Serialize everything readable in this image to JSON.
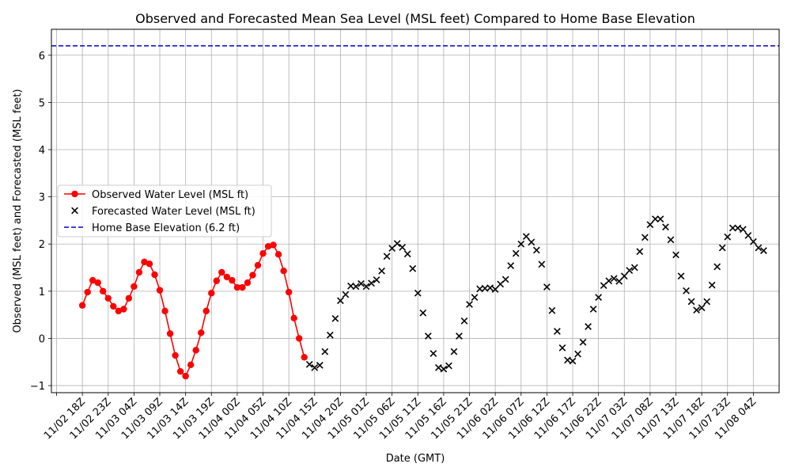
{
  "chart_data": {
    "type": "line",
    "title": "Observed and Forecasted Mean Sea Level (MSL feet) Compared to Home Base Elevation",
    "xlabel": "Date (GMT)",
    "ylabel": "Observed (MSL feet) and Forecasted (MSL feet)",
    "ylim": [
      -1.15,
      6.55
    ],
    "yticks": [
      -1,
      0,
      1,
      2,
      3,
      4,
      5,
      6
    ],
    "x_unit": "hours after 11/02 18Z",
    "xlim": [
      -6,
      135
    ],
    "xticks": [
      {
        "x": 0,
        "label": "11/02 18Z"
      },
      {
        "x": 5,
        "label": "11/02 23Z"
      },
      {
        "x": 10,
        "label": "11/03 04Z"
      },
      {
        "x": 15,
        "label": "11/03 09Z"
      },
      {
        "x": 20,
        "label": "11/03 14Z"
      },
      {
        "x": 25,
        "label": "11/03 19Z"
      },
      {
        "x": 30,
        "label": "11/04 00Z"
      },
      {
        "x": 35,
        "label": "11/04 05Z"
      },
      {
        "x": 40,
        "label": "11/04 10Z"
      },
      {
        "x": 45,
        "label": "11/04 15Z"
      },
      {
        "x": 50,
        "label": "11/04 20Z"
      },
      {
        "x": 55,
        "label": "11/05 01Z"
      },
      {
        "x": 60,
        "label": "11/05 06Z"
      },
      {
        "x": 65,
        "label": "11/05 11Z"
      },
      {
        "x": 70,
        "label": "11/05 16Z"
      },
      {
        "x": 75,
        "label": "11/05 21Z"
      },
      {
        "x": 80,
        "label": "11/06 02Z"
      },
      {
        "x": 85,
        "label": "11/06 07Z"
      },
      {
        "x": 90,
        "label": "11/06 12Z"
      },
      {
        "x": 95,
        "label": "11/06 17Z"
      },
      {
        "x": 100,
        "label": "11/06 22Z"
      },
      {
        "x": 105,
        "label": "11/07 03Z"
      },
      {
        "x": 110,
        "label": "11/07 08Z"
      },
      {
        "x": 115,
        "label": "11/07 13Z"
      },
      {
        "x": 120,
        "label": "11/07 18Z"
      },
      {
        "x": 125,
        "label": "11/07 23Z"
      },
      {
        "x": 130,
        "label": "11/08 04Z"
      }
    ],
    "grid": true,
    "legend_position": "center-left",
    "series": [
      {
        "name": "Observed Water Level (MSL ft)",
        "style": "line-marker",
        "color": "#ff0000",
        "points": [
          [
            0,
            0.7
          ],
          [
            1,
            0.98
          ],
          [
            2,
            1.23
          ],
          [
            3,
            1.18
          ],
          [
            4,
            1.0
          ],
          [
            5,
            0.85
          ],
          [
            6,
            0.68
          ],
          [
            7,
            0.58
          ],
          [
            8,
            0.62
          ],
          [
            9,
            0.85
          ],
          [
            10,
            1.1
          ],
          [
            11,
            1.4
          ],
          [
            12,
            1.62
          ],
          [
            13,
            1.58
          ],
          [
            14,
            1.35
          ],
          [
            15,
            1.02
          ],
          [
            16,
            0.58
          ],
          [
            17,
            0.1
          ],
          [
            18,
            -0.36
          ],
          [
            19,
            -0.7
          ],
          [
            20,
            -0.8
          ],
          [
            21,
            -0.56
          ],
          [
            22,
            -0.25
          ],
          [
            23,
            0.12
          ],
          [
            24,
            0.58
          ],
          [
            25,
            0.96
          ],
          [
            26,
            1.22
          ],
          [
            27,
            1.4
          ],
          [
            28,
            1.3
          ],
          [
            29,
            1.23
          ],
          [
            30,
            1.08
          ],
          [
            31,
            1.08
          ],
          [
            32,
            1.18
          ],
          [
            33,
            1.34
          ],
          [
            34,
            1.55
          ],
          [
            35,
            1.8
          ],
          [
            36,
            1.95
          ],
          [
            37,
            1.98
          ],
          [
            38,
            1.78
          ],
          [
            39,
            1.43
          ],
          [
            40,
            0.98
          ],
          [
            41,
            0.43
          ],
          [
            42,
            0.0
          ],
          [
            43,
            -0.4
          ]
        ]
      },
      {
        "name": "Forecasted Water Level (MSL ft)",
        "style": "x-marker",
        "color": "#000000",
        "points": [
          [
            44,
            -0.55
          ],
          [
            45,
            -0.62
          ],
          [
            46,
            -0.57
          ],
          [
            47,
            -0.28
          ],
          [
            48,
            0.07
          ],
          [
            49,
            0.42
          ],
          [
            50,
            0.8
          ],
          [
            51,
            0.93
          ],
          [
            52,
            1.11
          ],
          [
            53,
            1.1
          ],
          [
            54,
            1.16
          ],
          [
            55,
            1.1
          ],
          [
            56,
            1.17
          ],
          [
            57,
            1.24
          ],
          [
            58,
            1.43
          ],
          [
            59,
            1.74
          ],
          [
            60,
            1.91
          ],
          [
            61,
            2.01
          ],
          [
            62,
            1.93
          ],
          [
            63,
            1.79
          ],
          [
            64,
            1.48
          ],
          [
            65,
            0.96
          ],
          [
            66,
            0.54
          ],
          [
            67,
            0.05
          ],
          [
            68,
            -0.32
          ],
          [
            69,
            -0.62
          ],
          [
            70,
            -0.65
          ],
          [
            71,
            -0.58
          ],
          [
            72,
            -0.28
          ],
          [
            73,
            0.05
          ],
          [
            74,
            0.37
          ],
          [
            75,
            0.72
          ],
          [
            76,
            0.87
          ],
          [
            77,
            1.05
          ],
          [
            78,
            1.06
          ],
          [
            79,
            1.07
          ],
          [
            80,
            1.04
          ],
          [
            81,
            1.15
          ],
          [
            82,
            1.25
          ],
          [
            83,
            1.54
          ],
          [
            84,
            1.8
          ],
          [
            85,
            2.0
          ],
          [
            86,
            2.16
          ],
          [
            87,
            2.04
          ],
          [
            88,
            1.87
          ],
          [
            89,
            1.57
          ],
          [
            90,
            1.09
          ],
          [
            91,
            0.59
          ],
          [
            92,
            0.15
          ],
          [
            93,
            -0.2
          ],
          [
            94,
            -0.46
          ],
          [
            95,
            -0.48
          ],
          [
            96,
            -0.33
          ],
          [
            97,
            -0.08
          ],
          [
            98,
            0.25
          ],
          [
            99,
            0.62
          ],
          [
            100,
            0.87
          ],
          [
            101,
            1.12
          ],
          [
            102,
            1.22
          ],
          [
            103,
            1.27
          ],
          [
            104,
            1.21
          ],
          [
            105,
            1.32
          ],
          [
            106,
            1.44
          ],
          [
            107,
            1.5
          ],
          [
            108,
            1.84
          ],
          [
            109,
            2.14
          ],
          [
            110,
            2.41
          ],
          [
            111,
            2.53
          ],
          [
            112,
            2.53
          ],
          [
            113,
            2.36
          ],
          [
            114,
            2.09
          ],
          [
            115,
            1.77
          ],
          [
            116,
            1.32
          ],
          [
            117,
            1.01
          ],
          [
            118,
            0.78
          ],
          [
            119,
            0.6
          ],
          [
            120,
            0.65
          ],
          [
            121,
            0.78
          ],
          [
            122,
            1.13
          ],
          [
            123,
            1.52
          ],
          [
            124,
            1.92
          ],
          [
            125,
            2.15
          ],
          [
            126,
            2.34
          ],
          [
            127,
            2.34
          ],
          [
            128,
            2.31
          ],
          [
            129,
            2.18
          ],
          [
            130,
            2.05
          ],
          [
            131,
            1.92
          ],
          [
            132,
            1.86
          ]
        ]
      },
      {
        "name": "Home Base Elevation (6.2 ft)",
        "style": "dashed-hline",
        "color": "#0000cc",
        "y": 6.2
      }
    ]
  }
}
